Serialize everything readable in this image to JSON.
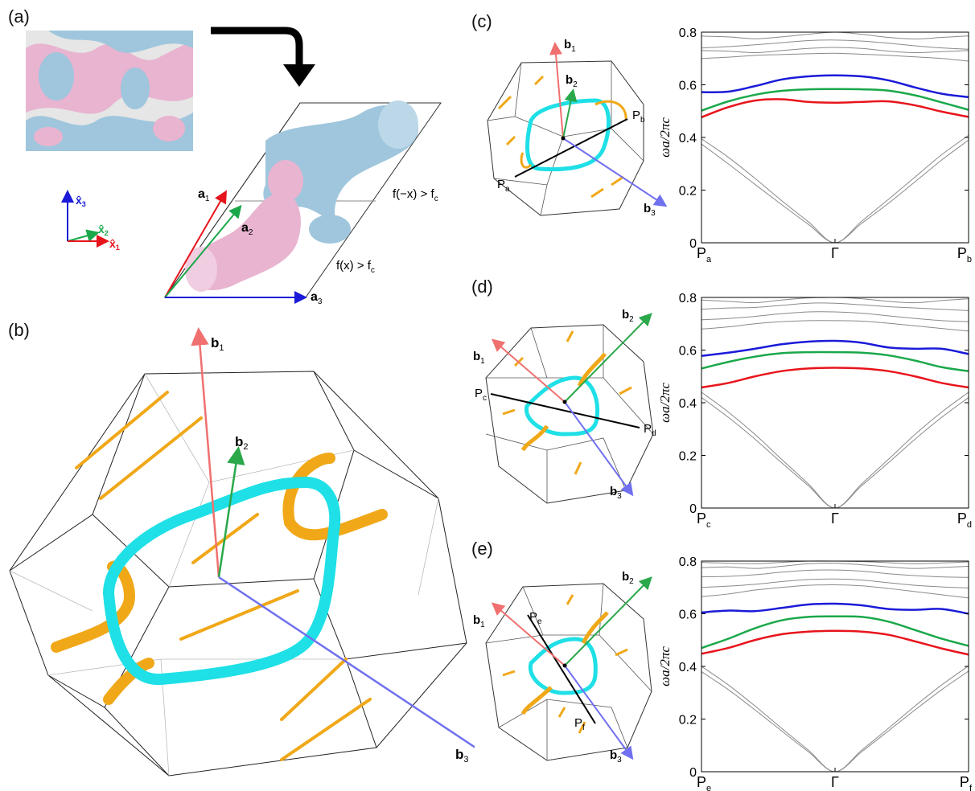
{
  "panels": {
    "a": "(a)",
    "b": "(b)",
    "c": "(c)",
    "d": "(d)",
    "e": "(e)"
  },
  "panel_a": {
    "lattice": {
      "a1": "a",
      "a1_sub": "1",
      "a2": "a",
      "a2_sub": "2",
      "a3": "a",
      "a3_sub": "3"
    },
    "axes": {
      "x1": "x̂",
      "x1_sub": "1",
      "x2": "x̂",
      "x2_sub": "2",
      "x3": "x̂",
      "x3_sub": "3"
    },
    "region_upper": "f(−x) > f",
    "region_upper_sub": "c",
    "region_lower": "f(x) > f",
    "region_lower_sub": "c",
    "colors": {
      "pink": "#e8b4d0",
      "blue": "#9fc6dd",
      "arrow": "#000000"
    }
  },
  "bz_labels": {
    "b": "b",
    "sub1": "1",
    "sub2": "2",
    "sub3": "3"
  },
  "k_points": {
    "c": {
      "start": "P",
      "start_sub": "a",
      "end": "P",
      "end_sub": "b"
    },
    "d": {
      "start": "P",
      "start_sub": "c",
      "end": "P",
      "end_sub": "d"
    },
    "e": {
      "start": "P",
      "start_sub": "e",
      "end": "P",
      "end_sub": "f"
    }
  },
  "colors": {
    "b1": "#f07070",
    "b2": "#2aa84a",
    "b3": "#7070f0",
    "nodal_ring": "#1ee0e6",
    "nodal_line": "#f0a818",
    "band_red": "#e8141c",
    "band_green": "#1aa84a",
    "band_blue": "#1a1ad8",
    "band_gray": "#8a8a8a"
  },
  "chart_data": [
    {
      "type": "line",
      "panel": "c",
      "ylabel": "ωa/2πc",
      "ylim": [
        0,
        0.8
      ],
      "yticks": [
        "0",
        "0.2",
        "0.4",
        "0.6",
        "0.8"
      ],
      "xticks": [
        {
          "label": "P",
          "sub": "a"
        },
        {
          "label": "Γ",
          "sub": ""
        },
        {
          "label": "P",
          "sub": "b"
        }
      ],
      "x": [
        0,
        0.1,
        0.2,
        0.3,
        0.4,
        0.5,
        0.6,
        0.7,
        0.8,
        0.9,
        1.0
      ],
      "series": [
        {
          "color": "red",
          "values": [
            0.477,
            0.515,
            0.54,
            0.545,
            0.535,
            0.532,
            0.535,
            0.537,
            0.522,
            0.498,
            0.478
          ]
        },
        {
          "color": "green",
          "values": [
            0.502,
            0.537,
            0.562,
            0.577,
            0.583,
            0.584,
            0.583,
            0.578,
            0.56,
            0.533,
            0.505
          ]
        },
        {
          "color": "blue",
          "values": [
            0.572,
            0.574,
            0.595,
            0.62,
            0.632,
            0.636,
            0.632,
            0.617,
            0.59,
            0.566,
            0.553
          ]
        },
        {
          "color": "gray",
          "values": [
            0.395,
            0.325,
            0.245,
            0.16,
            0.08,
            0.0,
            0.082,
            0.165,
            0.25,
            0.335,
            0.408
          ]
        },
        {
          "color": "gray",
          "values": [
            0.375,
            0.3,
            0.222,
            0.145,
            0.07,
            0.0,
            0.074,
            0.15,
            0.232,
            0.315,
            0.39
          ]
        },
        {
          "color": "gray",
          "values": [
            0.7,
            0.705,
            0.712,
            0.715,
            0.718,
            0.72,
            0.716,
            0.712,
            0.706,
            0.7,
            0.69
          ]
        },
        {
          "color": "gray",
          "values": [
            0.73,
            0.728,
            0.722,
            0.73,
            0.738,
            0.742,
            0.738,
            0.728,
            0.722,
            0.726,
            0.73
          ]
        },
        {
          "color": "gray",
          "values": [
            0.74,
            0.745,
            0.752,
            0.76,
            0.768,
            0.77,
            0.766,
            0.758,
            0.748,
            0.74,
            0.735
          ]
        },
        {
          "color": "gray",
          "values": [
            0.785,
            0.782,
            0.775,
            0.782,
            0.792,
            0.8,
            0.792,
            0.78,
            0.774,
            0.78,
            0.786
          ]
        }
      ]
    },
    {
      "type": "line",
      "panel": "d",
      "ylabel": "ωa/2πc",
      "ylim": [
        0,
        0.8
      ],
      "yticks": [
        "0",
        "0.2",
        "0.4",
        "0.6",
        "0.8"
      ],
      "xticks": [
        {
          "label": "P",
          "sub": "c"
        },
        {
          "label": "Γ",
          "sub": ""
        },
        {
          "label": "P",
          "sub": "d"
        }
      ],
      "x": [
        0,
        0.1,
        0.2,
        0.3,
        0.4,
        0.5,
        0.6,
        0.7,
        0.8,
        0.9,
        1.0
      ],
      "series": [
        {
          "color": "red",
          "values": [
            0.458,
            0.475,
            0.5,
            0.52,
            0.53,
            0.533,
            0.53,
            0.52,
            0.5,
            0.475,
            0.458
          ]
        },
        {
          "color": "green",
          "values": [
            0.53,
            0.555,
            0.575,
            0.588,
            0.592,
            0.592,
            0.59,
            0.58,
            0.56,
            0.535,
            0.52
          ]
        },
        {
          "color": "blue",
          "values": [
            0.578,
            0.59,
            0.605,
            0.622,
            0.632,
            0.635,
            0.628,
            0.61,
            0.605,
            0.605,
            0.585
          ]
        },
        {
          "color": "gray",
          "values": [
            0.44,
            0.365,
            0.28,
            0.185,
            0.092,
            0.0,
            0.092,
            0.185,
            0.28,
            0.365,
            0.44
          ]
        },
        {
          "color": "gray",
          "values": [
            0.42,
            0.345,
            0.262,
            0.172,
            0.085,
            0.0,
            0.085,
            0.172,
            0.262,
            0.345,
            0.42
          ]
        },
        {
          "color": "gray",
          "values": [
            0.68,
            0.688,
            0.7,
            0.708,
            0.712,
            0.712,
            0.71,
            0.702,
            0.692,
            0.682,
            0.672
          ]
        },
        {
          "color": "gray",
          "values": [
            0.715,
            0.72,
            0.728,
            0.738,
            0.745,
            0.745,
            0.74,
            0.73,
            0.72,
            0.712,
            0.708
          ]
        },
        {
          "color": "gray",
          "values": [
            0.755,
            0.76,
            0.762,
            0.77,
            0.778,
            0.778,
            0.772,
            0.765,
            0.76,
            0.755,
            0.75
          ]
        },
        {
          "color": "gray",
          "values": [
            0.79,
            0.785,
            0.78,
            0.79,
            0.798,
            0.8,
            0.795,
            0.785,
            0.78,
            0.788,
            0.795
          ]
        }
      ]
    },
    {
      "type": "line",
      "panel": "e",
      "ylabel": "ωa/2πc",
      "ylim": [
        0,
        0.8
      ],
      "yticks": [
        "0",
        "0.2",
        "0.4",
        "0.6",
        "0.8"
      ],
      "xticks": [
        {
          "label": "P",
          "sub": "e"
        },
        {
          "label": "Γ",
          "sub": ""
        },
        {
          "label": "P",
          "sub": "f"
        }
      ],
      "x": [
        0,
        0.1,
        0.2,
        0.3,
        0.4,
        0.5,
        0.6,
        0.7,
        0.8,
        0.9,
        1.0
      ],
      "series": [
        {
          "color": "red",
          "values": [
            0.448,
            0.47,
            0.5,
            0.522,
            0.532,
            0.535,
            0.532,
            0.52,
            0.495,
            0.468,
            0.445
          ]
        },
        {
          "color": "green",
          "values": [
            0.47,
            0.505,
            0.545,
            0.575,
            0.588,
            0.59,
            0.588,
            0.57,
            0.538,
            0.505,
            0.478
          ]
        },
        {
          "color": "blue",
          "values": [
            0.605,
            0.612,
            0.61,
            0.622,
            0.635,
            0.638,
            0.632,
            0.618,
            0.615,
            0.618,
            0.6
          ]
        },
        {
          "color": "gray",
          "values": [
            0.4,
            0.33,
            0.25,
            0.165,
            0.082,
            0.0,
            0.082,
            0.165,
            0.25,
            0.33,
            0.402
          ]
        },
        {
          "color": "gray",
          "values": [
            0.38,
            0.312,
            0.235,
            0.155,
            0.076,
            0.0,
            0.076,
            0.155,
            0.235,
            0.312,
            0.382
          ]
        },
        {
          "color": "gray",
          "values": [
            0.665,
            0.675,
            0.69,
            0.7,
            0.708,
            0.71,
            0.706,
            0.696,
            0.684,
            0.672,
            0.66
          ]
        },
        {
          "color": "gray",
          "values": [
            0.7,
            0.705,
            0.712,
            0.722,
            0.73,
            0.732,
            0.728,
            0.718,
            0.708,
            0.702,
            0.698
          ]
        },
        {
          "color": "gray",
          "values": [
            0.74,
            0.742,
            0.748,
            0.758,
            0.765,
            0.766,
            0.762,
            0.752,
            0.745,
            0.74,
            0.738
          ]
        },
        {
          "color": "gray",
          "values": [
            0.775,
            0.778,
            0.772,
            0.78,
            0.79,
            0.792,
            0.786,
            0.778,
            0.772,
            0.776,
            0.78
          ]
        },
        {
          "color": "gray",
          "values": [
            0.795,
            0.792,
            0.79,
            0.795,
            0.8,
            0.8,
            0.798,
            0.794,
            0.79,
            0.793,
            0.797
          ]
        }
      ]
    }
  ]
}
